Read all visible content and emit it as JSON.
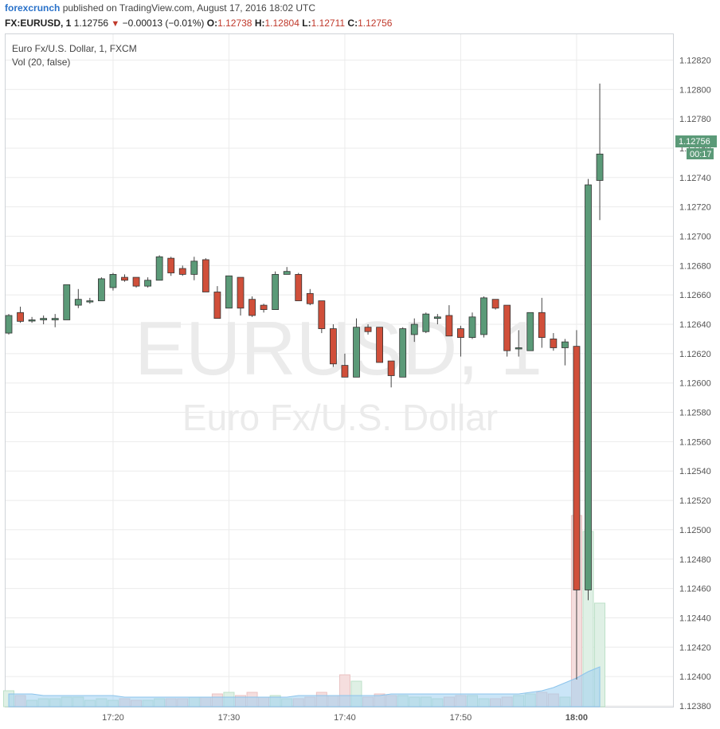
{
  "header": {
    "brand": "forexcrunch",
    "published": "published on TradingView.com, August 17, 2016 18:02 UTC"
  },
  "ohlc": {
    "symbol": "FX:EURUSD, 1",
    "last": "1.12756",
    "change": "−0.00013 (−0.01%)",
    "o_label": "O:",
    "o": "1.12738",
    "h_label": "H:",
    "h": "1.12804",
    "l_label": "L:",
    "l": "1.12711",
    "c_label": "C:",
    "c": "1.12756"
  },
  "legend": {
    "name": "Euro Fx/U.S. Dollar, 1, FXCM",
    "vol": "Vol (20, false)"
  },
  "watermark": {
    "line1": "EURUSD, 1",
    "line2": "Euro Fx/U.S. Dollar"
  },
  "price_tag": {
    "price": "1.12756",
    "countdown": "00:17"
  },
  "colors": {
    "up": "#5b9a78",
    "down": "#d04f3a",
    "ma": "#9fcff0"
  },
  "chart_data": {
    "type": "candlestick",
    "title": "Euro Fx/U.S. Dollar, 1, FXCM",
    "ylim": [
      1.1238,
      1.1283
    ],
    "yticks": [
      1.1238,
      1.124,
      1.1242,
      1.1244,
      1.1246,
      1.1248,
      1.125,
      1.1252,
      1.1254,
      1.1256,
      1.1258,
      1.126,
      1.1262,
      1.1264,
      1.1266,
      1.1268,
      1.127,
      1.1272,
      1.1274,
      1.1276,
      1.1278,
      1.128,
      1.1282
    ],
    "xticks": [
      {
        "label": "17:20",
        "index": 9
      },
      {
        "label": "17:30",
        "index": 19
      },
      {
        "label": "17:40",
        "index": 29
      },
      {
        "label": "17:50",
        "index": 39
      },
      {
        "label": "18:00",
        "index": 49
      }
    ],
    "grid": true,
    "candles": [
      {
        "o": 1.12634,
        "h": 1.12647,
        "l": 1.12633,
        "c": 1.12646,
        "v": 10
      },
      {
        "o": 1.12648,
        "h": 1.12652,
        "l": 1.12641,
        "c": 1.12642,
        "v": 7
      },
      {
        "o": 1.12643,
        "h": 1.12645,
        "l": 1.12641,
        "c": 1.12643,
        "v": 4
      },
      {
        "o": 1.12643,
        "h": 1.12646,
        "l": 1.1264,
        "c": 1.12644,
        "v": 5
      },
      {
        "o": 1.12643,
        "h": 1.12647,
        "l": 1.12638,
        "c": 1.12644,
        "v": 5
      },
      {
        "o": 1.12643,
        "h": 1.12667,
        "l": 1.12643,
        "c": 1.12667,
        "v": 6
      },
      {
        "o": 1.12653,
        "h": 1.12664,
        "l": 1.12651,
        "c": 1.12657,
        "v": 6
      },
      {
        "o": 1.12656,
        "h": 1.12658,
        "l": 1.12654,
        "c": 1.12656,
        "v": 4
      },
      {
        "o": 1.12656,
        "h": 1.12672,
        "l": 1.12656,
        "c": 1.12671,
        "v": 5
      },
      {
        "o": 1.12665,
        "h": 1.12675,
        "l": 1.12663,
        "c": 1.12674,
        "v": 4
      },
      {
        "o": 1.12672,
        "h": 1.12674,
        "l": 1.12669,
        "c": 1.1267,
        "v": 5
      },
      {
        "o": 1.12672,
        "h": 1.12672,
        "l": 1.12665,
        "c": 1.12666,
        "v": 4
      },
      {
        "o": 1.12666,
        "h": 1.12672,
        "l": 1.12665,
        "c": 1.1267,
        "v": 4
      },
      {
        "o": 1.1267,
        "h": 1.12687,
        "l": 1.1267,
        "c": 1.12686,
        "v": 5
      },
      {
        "o": 1.12685,
        "h": 1.12686,
        "l": 1.12673,
        "c": 1.12675,
        "v": 5
      },
      {
        "o": 1.12678,
        "h": 1.1268,
        "l": 1.12673,
        "c": 1.12674,
        "v": 5
      },
      {
        "o": 1.12674,
        "h": 1.12686,
        "l": 1.1267,
        "c": 1.12683,
        "v": 6
      },
      {
        "o": 1.12684,
        "h": 1.12685,
        "l": 1.12662,
        "c": 1.12662,
        "v": 6
      },
      {
        "o": 1.12662,
        "h": 1.12666,
        "l": 1.12648,
        "c": 1.12644,
        "v": 8
      },
      {
        "o": 1.12651,
        "h": 1.12672,
        "l": 1.12651,
        "c": 1.12673,
        "v": 9
      },
      {
        "o": 1.12672,
        "h": 1.12672,
        "l": 1.12646,
        "c": 1.12651,
        "v": 7
      },
      {
        "o": 1.12657,
        "h": 1.12659,
        "l": 1.12645,
        "c": 1.12646,
        "v": 9
      },
      {
        "o": 1.12653,
        "h": 1.12654,
        "l": 1.12648,
        "c": 1.1265,
        "v": 6
      },
      {
        "o": 1.1265,
        "h": 1.12676,
        "l": 1.1265,
        "c": 1.12674,
        "v": 7
      },
      {
        "o": 1.12674,
        "h": 1.12679,
        "l": 1.12674,
        "c": 1.12676,
        "v": 5
      },
      {
        "o": 1.12674,
        "h": 1.12675,
        "l": 1.12656,
        "c": 1.12656,
        "v": 5
      },
      {
        "o": 1.12661,
        "h": 1.12664,
        "l": 1.12653,
        "c": 1.12654,
        "v": 6
      },
      {
        "o": 1.12656,
        "h": 1.12654,
        "l": 1.12634,
        "c": 1.12637,
        "v": 9
      },
      {
        "o": 1.12637,
        "h": 1.1264,
        "l": 1.12611,
        "c": 1.12613,
        "v": 7
      },
      {
        "o": 1.12612,
        "h": 1.1262,
        "l": 1.12606,
        "c": 1.12604,
        "v": 20
      },
      {
        "o": 1.12604,
        "h": 1.12644,
        "l": 1.12604,
        "c": 1.12638,
        "v": 16
      },
      {
        "o": 1.12638,
        "h": 1.1264,
        "l": 1.12633,
        "c": 1.12635,
        "v": 6
      },
      {
        "o": 1.12638,
        "h": 1.12638,
        "l": 1.12616,
        "c": 1.12614,
        "v": 8
      },
      {
        "o": 1.12615,
        "h": 1.12615,
        "l": 1.12597,
        "c": 1.12605,
        "v": 7
      },
      {
        "o": 1.12604,
        "h": 1.12638,
        "l": 1.12604,
        "c": 1.12637,
        "v": 7
      },
      {
        "o": 1.12633,
        "h": 1.12644,
        "l": 1.12628,
        "c": 1.1264,
        "v": 6
      },
      {
        "o": 1.12635,
        "h": 1.12648,
        "l": 1.12634,
        "c": 1.12647,
        "v": 6
      },
      {
        "o": 1.12644,
        "h": 1.12647,
        "l": 1.1264,
        "c": 1.12645,
        "v": 5
      },
      {
        "o": 1.12646,
        "h": 1.12653,
        "l": 1.12632,
        "c": 1.12632,
        "v": 6
      },
      {
        "o": 1.12637,
        "h": 1.12639,
        "l": 1.12618,
        "c": 1.12631,
        "v": 7
      },
      {
        "o": 1.12631,
        "h": 1.12648,
        "l": 1.1263,
        "c": 1.12645,
        "v": 7
      },
      {
        "o": 1.12633,
        "h": 1.12659,
        "l": 1.12631,
        "c": 1.12658,
        "v": 5
      },
      {
        "o": 1.12657,
        "h": 1.12657,
        "l": 1.1265,
        "c": 1.12651,
        "v": 5
      },
      {
        "o": 1.12653,
        "h": 1.12653,
        "l": 1.12618,
        "c": 1.12622,
        "v": 6
      },
      {
        "o": 1.12624,
        "h": 1.12636,
        "l": 1.12618,
        "c": 1.12624,
        "v": 7
      },
      {
        "o": 1.12622,
        "h": 1.12648,
        "l": 1.12622,
        "c": 1.12648,
        "v": 8
      },
      {
        "o": 1.12648,
        "h": 1.12658,
        "l": 1.12624,
        "c": 1.12631,
        "v": 9
      },
      {
        "o": 1.1263,
        "h": 1.12634,
        "l": 1.12622,
        "c": 1.12624,
        "v": 8
      },
      {
        "o": 1.12624,
        "h": 1.1263,
        "l": 1.12612,
        "c": 1.12628,
        "v": 6
      },
      {
        "o": 1.12625,
        "h": 1.12636,
        "l": 1.12398,
        "c": 1.12459,
        "v": 120
      },
      {
        "o": 1.12459,
        "h": 1.12739,
        "l": 1.12452,
        "c": 1.12735,
        "v": 110
      },
      {
        "o": 1.12738,
        "h": 1.12804,
        "l": 1.12711,
        "c": 1.12756,
        "v": 65
      }
    ],
    "volume_ma": [
      8,
      8,
      8,
      7,
      7,
      7,
      7,
      7,
      7,
      7,
      6,
      6,
      6,
      6,
      6,
      6,
      6,
      6,
      6,
      6,
      6,
      6,
      6,
      6,
      6,
      7,
      7,
      7,
      7,
      7,
      7,
      7,
      7,
      8,
      8,
      8,
      8,
      8,
      8,
      8,
      8,
      8,
      8,
      8,
      8,
      9,
      10,
      12,
      15,
      18,
      22,
      25
    ]
  }
}
